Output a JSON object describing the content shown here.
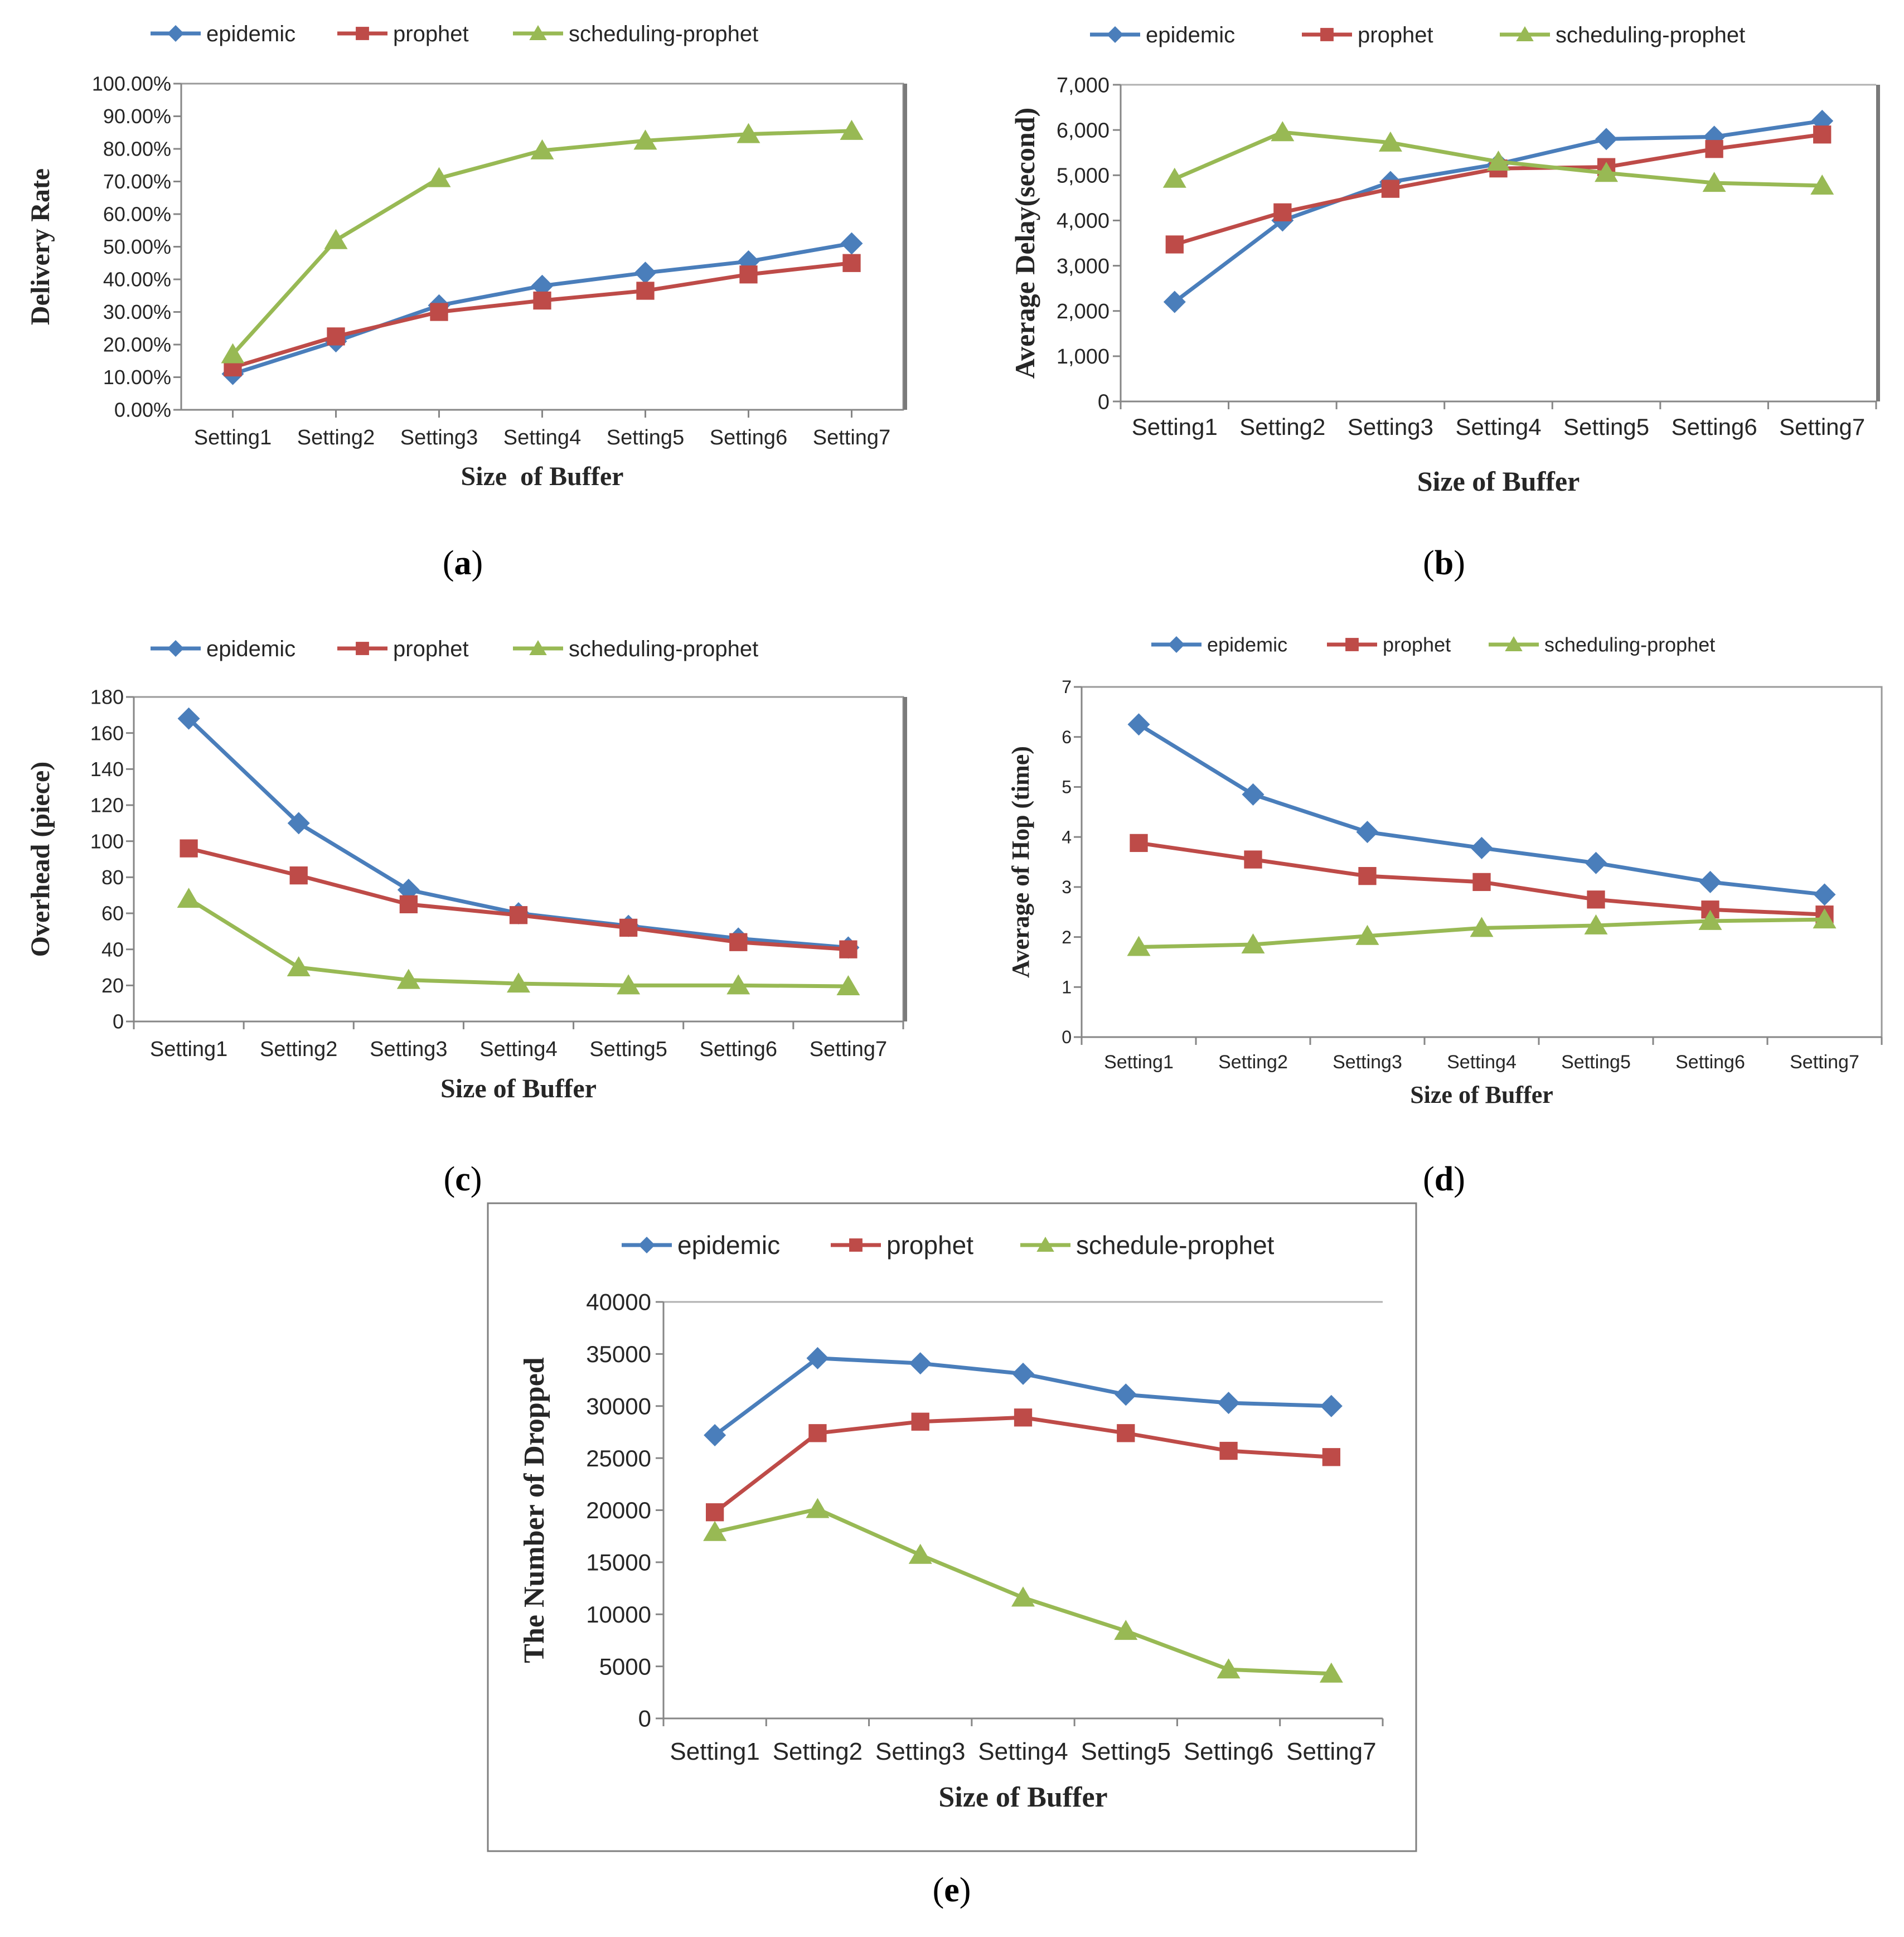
{
  "colors": {
    "epidemic": "#4A7EBB",
    "prophet": "#BE4B48",
    "scheduling": "#98B954",
    "axis": "#868686",
    "frame": "#7f7f7f",
    "text": "#262626"
  },
  "chart_data": [
    {
      "id": "a",
      "type": "line",
      "caption": "(a)",
      "xlabel": "Size  of Buffer",
      "ylabel": "Delivery Rate",
      "categories": [
        "Setting1",
        "Setting2",
        "Setting3",
        "Setting4",
        "Setting5",
        "Setting6",
        "Setting7"
      ],
      "ylim": [
        0,
        1
      ],
      "yticks": [
        0,
        0.1,
        0.2,
        0.3,
        0.4,
        0.5,
        0.6,
        0.7,
        0.8,
        0.9,
        1.0
      ],
      "ytick_labels": [
        "0.00%",
        "10.00%",
        "20.00%",
        "30.00%",
        "40.00%",
        "50.00%",
        "60.00%",
        "70.00%",
        "80.00%",
        "90.00%",
        "100.00%"
      ],
      "series": [
        {
          "name": "epidemic",
          "marker": "diamond",
          "values": [
            0.11,
            0.21,
            0.32,
            0.38,
            0.42,
            0.455,
            0.51
          ]
        },
        {
          "name": "prophet",
          "marker": "square",
          "values": [
            0.13,
            0.225,
            0.3,
            0.335,
            0.365,
            0.415,
            0.45
          ]
        },
        {
          "name": "scheduling-prophet",
          "marker": "triangle",
          "values": [
            0.17,
            0.52,
            0.71,
            0.795,
            0.825,
            0.845,
            0.855
          ]
        }
      ]
    },
    {
      "id": "b",
      "type": "line",
      "caption": "(b)",
      "xlabel": "Size of Buffer",
      "ylabel": "Average Delay(second)",
      "categories": [
        "Setting1",
        "Setting2",
        "Setting3",
        "Setting4",
        "Setting5",
        "Setting6",
        "Setting7"
      ],
      "ylim": [
        0,
        7000
      ],
      "yticks": [
        0,
        1000,
        2000,
        3000,
        4000,
        5000,
        6000,
        7000
      ],
      "ytick_labels": [
        "0",
        "1,000",
        "2,000",
        "3,000",
        "4,000",
        "5,000",
        "6,000",
        "7,000"
      ],
      "series": [
        {
          "name": "epidemic",
          "marker": "diamond",
          "values": [
            2200,
            4000,
            4850,
            5250,
            5800,
            5850,
            6200
          ]
        },
        {
          "name": "prophet",
          "marker": "square",
          "values": [
            3470,
            4180,
            4700,
            5150,
            5180,
            5580,
            5900
          ]
        },
        {
          "name": "scheduling-prophet",
          "marker": "triangle",
          "values": [
            4920,
            5950,
            5720,
            5300,
            5050,
            4830,
            4770
          ]
        }
      ]
    },
    {
      "id": "c",
      "type": "line",
      "caption": "(c)",
      "xlabel": "Size of Buffer",
      "ylabel": "Overhead (piece)",
      "categories": [
        "Setting1",
        "Setting2",
        "Setting3",
        "Setting4",
        "Setting5",
        "Setting6",
        "Setting7"
      ],
      "ylim": [
        0,
        180
      ],
      "yticks": [
        0,
        20,
        40,
        60,
        80,
        100,
        120,
        140,
        160,
        180
      ],
      "ytick_labels": [
        "0",
        "20",
        "40",
        "60",
        "80",
        "100",
        "120",
        "140",
        "160",
        "180"
      ],
      "series": [
        {
          "name": "epidemic",
          "marker": "diamond",
          "values": [
            168,
            110,
            73,
            60,
            53,
            46,
            41
          ]
        },
        {
          "name": "prophet",
          "marker": "square",
          "values": [
            96,
            81,
            65,
            59,
            52,
            44,
            40
          ]
        },
        {
          "name": "scheduling-prophet",
          "marker": "triangle",
          "values": [
            68,
            30,
            23,
            21,
            20,
            20,
            19.5
          ]
        }
      ]
    },
    {
      "id": "d",
      "type": "line",
      "caption": "(d)",
      "xlabel": "Size of Buffer",
      "ylabel": "Average of Hop (time)",
      "categories": [
        "Setting1",
        "Setting2",
        "Setting3",
        "Setting4",
        "Setting5",
        "Setting6",
        "Setting7"
      ],
      "ylim": [
        0,
        7
      ],
      "yticks": [
        0,
        1,
        2,
        3,
        4,
        5,
        6,
        7
      ],
      "ytick_labels": [
        "0",
        "1",
        "2",
        "3",
        "4",
        "5",
        "6",
        "7"
      ],
      "series": [
        {
          "name": "epidemic",
          "marker": "diamond",
          "values": [
            6.25,
            4.85,
            4.1,
            3.78,
            3.48,
            3.1,
            2.85
          ]
        },
        {
          "name": "prophet",
          "marker": "square",
          "values": [
            3.88,
            3.55,
            3.22,
            3.1,
            2.75,
            2.55,
            2.45
          ]
        },
        {
          "name": "scheduling-prophet",
          "marker": "triangle",
          "values": [
            1.8,
            1.85,
            2.02,
            2.18,
            2.23,
            2.32,
            2.35
          ]
        }
      ]
    },
    {
      "id": "e",
      "type": "line",
      "caption": "(e)",
      "xlabel": "Size of Buffer",
      "ylabel": "The Number of Dropped",
      "categories": [
        "Setting1",
        "Setting2",
        "Setting3",
        "Setting4",
        "Setting5",
        "Setting6",
        "Setting7"
      ],
      "ylim": [
        0,
        40000
      ],
      "yticks": [
        0,
        5000,
        10000,
        15000,
        20000,
        25000,
        30000,
        35000,
        40000
      ],
      "ytick_labels": [
        "0",
        "5000",
        "10000",
        "15000",
        "20000",
        "25000",
        "30000",
        "35000",
        "40000"
      ],
      "series": [
        {
          "name": "epidemic",
          "marker": "diamond",
          "values": [
            27200,
            34600,
            34100,
            33100,
            31100,
            30300,
            30000
          ]
        },
        {
          "name": "prophet",
          "marker": "square",
          "values": [
            19800,
            27400,
            28500,
            28900,
            27400,
            25700,
            25100
          ]
        },
        {
          "name": "schedule-prophet",
          "marker": "triangle",
          "values": [
            17900,
            20100,
            15700,
            11600,
            8400,
            4700,
            4300
          ]
        }
      ]
    }
  ]
}
